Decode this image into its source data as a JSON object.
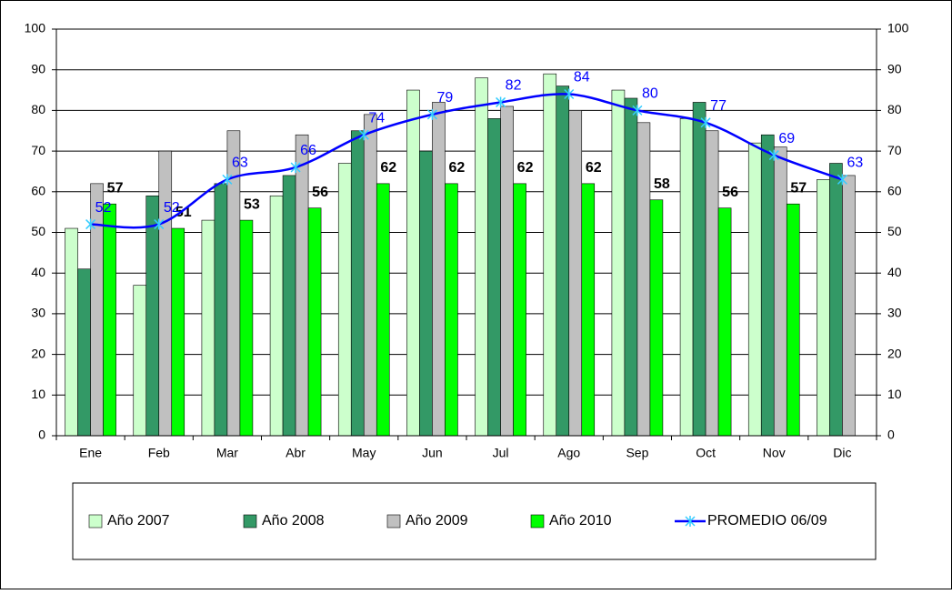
{
  "chart_data": {
    "type": "bar",
    "categories": [
      "Ene",
      "Feb",
      "Mar",
      "Abr",
      "May",
      "Jun",
      "Jul",
      "Ago",
      "Sep",
      "Oct",
      "Nov",
      "Dic"
    ],
    "series": [
      {
        "name": "Año 2007",
        "color": "#ccffcc",
        "values": [
          51,
          37,
          53,
          59,
          67,
          85,
          88,
          89,
          85,
          78,
          72,
          63
        ]
      },
      {
        "name": "Año 2008",
        "color": "#339966",
        "values": [
          41,
          59,
          62,
          64,
          75,
          70,
          78,
          86,
          83,
          82,
          74,
          67
        ]
      },
      {
        "name": "Año 2009",
        "color": "#c0c0c0",
        "values": [
          62,
          70,
          75,
          74,
          79,
          82,
          81,
          80,
          77,
          75,
          71,
          64
        ]
      },
      {
        "name": "Año 2010",
        "color": "#00ff00",
        "values": [
          57,
          51,
          53,
          56,
          62,
          62,
          62,
          62,
          58,
          56,
          57,
          null
        ],
        "labels": true,
        "label_color": "#000000"
      },
      {
        "name": "PROMEDIO 06/09",
        "type": "line",
        "color": "#0000ff",
        "marker_color": "#33ccff",
        "values": [
          52,
          52,
          63,
          66,
          74,
          79,
          82,
          84,
          80,
          77,
          69,
          63
        ],
        "labels": true,
        "label_color": "#0000ff"
      }
    ],
    "ylim": [
      0,
      100
    ],
    "yticks": [
      0,
      10,
      20,
      30,
      40,
      50,
      60,
      70,
      80,
      90,
      100
    ],
    "y2lim": [
      0,
      100
    ],
    "y2ticks": [
      0,
      10,
      20,
      30,
      40,
      50,
      60,
      70,
      80,
      90,
      100
    ],
    "grid": true,
    "legend": "bottom"
  }
}
